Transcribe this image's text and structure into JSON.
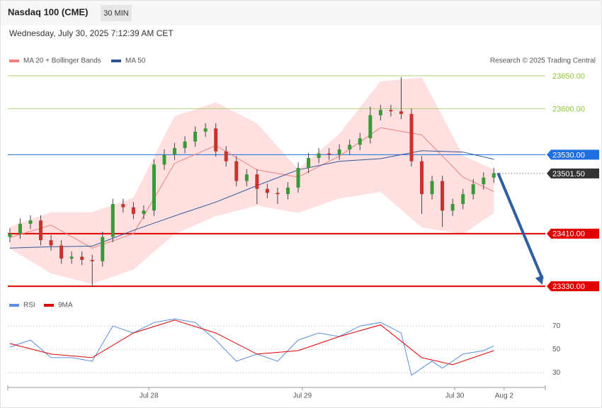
{
  "header": {
    "title": "Nasdaq 100 (CME)",
    "interval": "30 MIN",
    "date": "Wednesday, July 30, 2025 7:12:39 AM CET"
  },
  "chart_data": [
    {
      "type": "candlestick",
      "credit": "Research © 2025 Trading Central",
      "x": [
        0,
        1,
        2,
        3,
        4,
        5,
        6,
        7,
        8,
        9,
        10,
        11,
        12,
        13,
        14,
        15,
        16,
        17,
        18,
        19,
        20,
        21,
        22,
        23,
        24,
        25,
        26,
        27,
        28,
        29,
        30,
        31,
        32,
        33,
        34,
        35,
        36,
        37,
        38,
        39,
        40,
        41,
        42,
        43,
        44,
        45,
        46,
        47
      ],
      "open": [
        23405,
        23410,
        23425,
        23430,
        23400,
        23392,
        23372,
        23375,
        23370,
        23368,
        23405,
        23455,
        23450,
        23440,
        23445,
        23515,
        23530,
        23540,
        23550,
        23565,
        23570,
        23535,
        23520,
        23490,
        23500,
        23478,
        23472,
        23470,
        23480,
        23510,
        23525,
        23532,
        23530,
        23538,
        23545,
        23555,
        23590,
        23598,
        23596,
        23592,
        23520,
        23470,
        23490,
        23445,
        23455,
        23470,
        23485,
        23495
      ],
      "high": [
        23418,
        23433,
        23438,
        23438,
        23408,
        23400,
        23383,
        23383,
        23378,
        23413,
        23463,
        23463,
        23458,
        23453,
        23523,
        23538,
        23548,
        23558,
        23573,
        23578,
        23578,
        23543,
        23528,
        23508,
        23508,
        23486,
        23480,
        23488,
        23518,
        23533,
        23540,
        23540,
        23546,
        23553,
        23563,
        23603,
        23606,
        23606,
        23648,
        23600,
        23528,
        23498,
        23498,
        23463,
        23478,
        23493,
        23503,
        23510
      ],
      "low": [
        23397,
        23402,
        23417,
        23392,
        23384,
        23364,
        23364,
        23362,
        23330,
        23360,
        23397,
        23442,
        23432,
        23432,
        23437,
        23507,
        23522,
        23532,
        23542,
        23557,
        23527,
        23512,
        23482,
        23482,
        23455,
        23464,
        23455,
        23462,
        23472,
        23502,
        23517,
        23522,
        23522,
        23530,
        23537,
        23547,
        23582,
        23588,
        23584,
        23512,
        23440,
        23462,
        23420,
        23437,
        23447,
        23462,
        23477,
        23487
      ],
      "close": [
        23410,
        23425,
        23430,
        23400,
        23392,
        23372,
        23375,
        23370,
        23368,
        23405,
        23455,
        23450,
        23440,
        23445,
        23515,
        23530,
        23540,
        23550,
        23565,
        23570,
        23535,
        23520,
        23490,
        23500,
        23478,
        23472,
        23470,
        23480,
        23510,
        23525,
        23532,
        23530,
        23538,
        23545,
        23555,
        23590,
        23598,
        23596,
        23592,
        23520,
        23470,
        23490,
        23445,
        23455,
        23470,
        23485,
        23495,
        23502
      ],
      "up_color": "#3a9a3a",
      "down_color": "#c8342c",
      "xlim": [
        -0.2,
        52
      ],
      "xticks": [
        {
          "value": 13.5,
          "label": "Jul 28"
        },
        {
          "value": 28.4,
          "label": "Jul 29"
        },
        {
          "value": 43.2,
          "label": "Jul 30"
        },
        {
          "value": 48,
          "label": "Aug 2"
        }
      ],
      "ylim": [
        23321.5,
        23657.5
      ],
      "lines": [
        {
          "name": "MA 20 + Bollinger Bands",
          "color": "#f08080",
          "band_color": "#ffe0e0",
          "x": [
            0,
            4,
            8,
            12,
            16,
            20,
            24,
            28,
            32,
            36,
            40,
            44,
            47
          ],
          "values": [
            23404,
            23423,
            23388,
            23410,
            23517,
            23544,
            23507,
            23496,
            23528,
            23571,
            23560,
            23496,
            23474
          ],
          "upper": [
            23420,
            23442,
            23442,
            23464,
            23588,
            23609,
            23577,
            23507,
            23561,
            23641,
            23647,
            23528,
            23507
          ],
          "lower": [
            23388,
            23350,
            23334,
            23356,
            23410,
            23437,
            23453,
            23442,
            23464,
            23474,
            23420,
            23410,
            23442
          ]
        },
        {
          "name": "MA 50",
          "color": "#2f5597",
          "x": [
            0,
            4,
            8,
            12,
            16,
            20,
            24,
            28,
            32,
            36,
            40,
            44,
            47
          ],
          "values": [
            23388,
            23390,
            23391,
            23415,
            23437,
            23458,
            23483,
            23507,
            23520,
            23524,
            23536,
            23534,
            23523
          ]
        }
      ],
      "levels": [
        {
          "value": 23650,
          "label": "23650.00",
          "color": "#8dc63f",
          "box": false,
          "dotted": false
        },
        {
          "value": 23600,
          "label": "23600.00",
          "color": "#8dc63f",
          "box": false,
          "dotted": false
        },
        {
          "value": 23530,
          "label": "23530.00",
          "color": "#1e6fe0",
          "box": true,
          "dotted": false
        },
        {
          "value": 23501.5,
          "label": "23501.50",
          "color": "#333333",
          "box": true,
          "dotted": true
        },
        {
          "value": 23410,
          "label": "23410.00",
          "color": "#e00000",
          "box": true,
          "dotted": false
        },
        {
          "value": 23330,
          "label": "23330.00",
          "color": "#e00000",
          "box": true,
          "dotted": false
        }
      ],
      "arrow_color": "#2f5fa0"
    },
    {
      "type": "line",
      "ylim": [
        23,
        81
      ],
      "yticks": [
        70,
        50,
        30
      ],
      "series": [
        {
          "name": "RSI",
          "color": "#5b8fe0",
          "x": [
            0,
            2,
            4,
            6,
            8,
            10,
            12,
            14,
            16,
            18,
            20,
            22,
            24,
            26,
            28,
            30,
            32,
            34,
            36,
            38,
            39,
            41,
            42,
            44,
            46,
            47
          ],
          "values": [
            52,
            58,
            43,
            43,
            40,
            70,
            64,
            73,
            76,
            73,
            58,
            40,
            46,
            40,
            58,
            64,
            61,
            70,
            73,
            64,
            28,
            40,
            34,
            46,
            49,
            53
          ]
        },
        {
          "name": "9MA",
          "color": "#e00000",
          "x": [
            0,
            4,
            8,
            12,
            16,
            20,
            24,
            28,
            32,
            36,
            40,
            43,
            47
          ],
          "values": [
            55,
            46,
            43,
            64,
            75,
            64,
            46,
            49,
            61,
            71,
            43,
            37,
            49
          ]
        }
      ]
    }
  ]
}
